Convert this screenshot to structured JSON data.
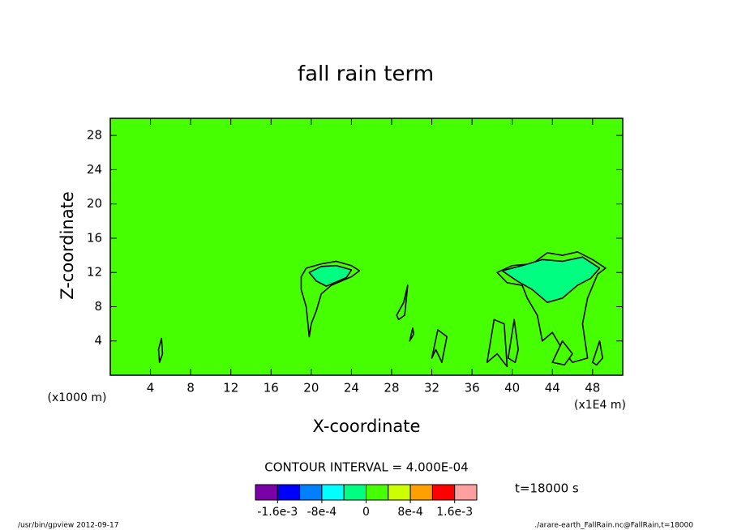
{
  "chart_data": {
    "type": "contour",
    "title": "fall rain term",
    "xlabel": "X-coordinate",
    "ylabel": "Z-coordinate",
    "xunit": "(x1E4 m)",
    "yunit": "(x1000 m)",
    "xlim": [
      0,
      51
    ],
    "ylim": [
      0,
      30
    ],
    "xticks": [
      4,
      8,
      12,
      16,
      20,
      24,
      28,
      32,
      36,
      40,
      44,
      48
    ],
    "yticks": [
      4,
      8,
      12,
      16,
      20,
      24,
      28
    ],
    "background_level": 0.0002,
    "contours": [
      {
        "level": 0.0002,
        "x": [
          19,
          19.5,
          21,
          22.5,
          24,
          24.8,
          24,
          23,
          22,
          21,
          20.5,
          20,
          19.8,
          19.5,
          19
        ],
        "z": [
          11.5,
          12.5,
          13,
          13.3,
          12.8,
          12.2,
          11.5,
          11,
          10.5,
          9.5,
          7.5,
          6,
          4.5,
          8,
          10
        ]
      },
      {
        "level": -0.0002,
        "x": [
          19.8,
          21,
          22.5,
          24,
          23.5,
          22.5,
          21.5,
          20.5
        ],
        "z": [
          12,
          12.7,
          12.8,
          12.3,
          11.4,
          10.9,
          10.4,
          11
        ]
      },
      {
        "level": 0.0002,
        "x": [
          38.5,
          40,
          42,
          43.5,
          45,
          46.5,
          48,
          49.3,
          48.5,
          47.5,
          47,
          47.5,
          46,
          45,
          44,
          43,
          42.5,
          41.5,
          41,
          39.5
        ],
        "z": [
          12,
          12.8,
          13,
          14.3,
          14,
          14.4,
          13.5,
          12.5,
          11.8,
          9,
          6,
          2,
          1.5,
          3,
          5,
          4,
          7,
          9,
          10.5,
          10.8
        ]
      },
      {
        "level": -0.0002,
        "x": [
          39,
          41,
          43,
          45,
          47,
          48.7,
          47.8,
          46.5,
          45,
          43.5,
          42,
          40.5
        ],
        "z": [
          12.2,
          12.8,
          13.5,
          13.3,
          13.8,
          12.5,
          11.3,
          10.5,
          9,
          8.5,
          10,
          11
        ]
      },
      {
        "level": 0.0002,
        "x": [
          4.9,
          5.2,
          5.1,
          4.8
        ],
        "z": [
          1.5,
          2.5,
          4.3,
          3
        ]
      },
      {
        "level": 0.0002,
        "x": [
          28.5,
          29.2,
          29.6,
          29.3,
          28.7
        ],
        "z": [
          7,
          8.5,
          10.5,
          7,
          6.5
        ]
      },
      {
        "level": 0.0002,
        "x": [
          29.8,
          30.2,
          30.1
        ],
        "z": [
          4,
          4.8,
          5.5
        ]
      },
      {
        "level": 0.0002,
        "x": [
          32,
          32.6,
          33.5,
          33,
          32.4
        ],
        "z": [
          2,
          5.3,
          4.5,
          1.5,
          3
        ]
      },
      {
        "level": 0.0002,
        "x": [
          37.5,
          38.2,
          39.2,
          39.5,
          38.5
        ],
        "z": [
          1.5,
          6.5,
          6,
          1,
          2.5
        ]
      },
      {
        "level": 0.0002,
        "x": [
          39.6,
          40.2,
          40.6,
          40.3
        ],
        "z": [
          2,
          6.5,
          3,
          1.5
        ]
      },
      {
        "level": 0.0002,
        "x": [
          44,
          45,
          46,
          45.2
        ],
        "z": [
          1.5,
          4,
          2.5,
          1.2
        ]
      },
      {
        "level": 0.0002,
        "x": [
          48,
          48.7,
          49,
          48.4
        ],
        "z": [
          1.5,
          4,
          2,
          1.2
        ]
      }
    ],
    "interval_text": "CONTOUR INTERVAL = 4.000E-04",
    "time_text": "t=18000 s",
    "colorbar": {
      "levels": [
        -0.002,
        -0.0016,
        -0.0012,
        -0.0008,
        -0.0004,
        0,
        0.0004,
        0.0008,
        0.0012,
        0.0016,
        0.002
      ],
      "colors": [
        "#7a00a8",
        "#0000ff",
        "#0080ff",
        "#00ffff",
        "#00ff80",
        "#46ff00",
        "#ccff00",
        "#ffa000",
        "#ff0000",
        "#ffa0a0"
      ],
      "ticks": [
        {
          "value": -0.0016,
          "label": "-1.6e-3"
        },
        {
          "value": -0.0008,
          "label": "-8e-4"
        },
        {
          "value": 0,
          "label": "0"
        },
        {
          "value": 0.0008,
          "label": "8e-4"
        },
        {
          "value": 0.0016,
          "label": "1.6e-3"
        }
      ]
    },
    "footer_left": "/usr/bin/gpview  2012-09-17",
    "footer_right": "./arare-earth_FallRain.nc@FallRain,t=18000"
  }
}
